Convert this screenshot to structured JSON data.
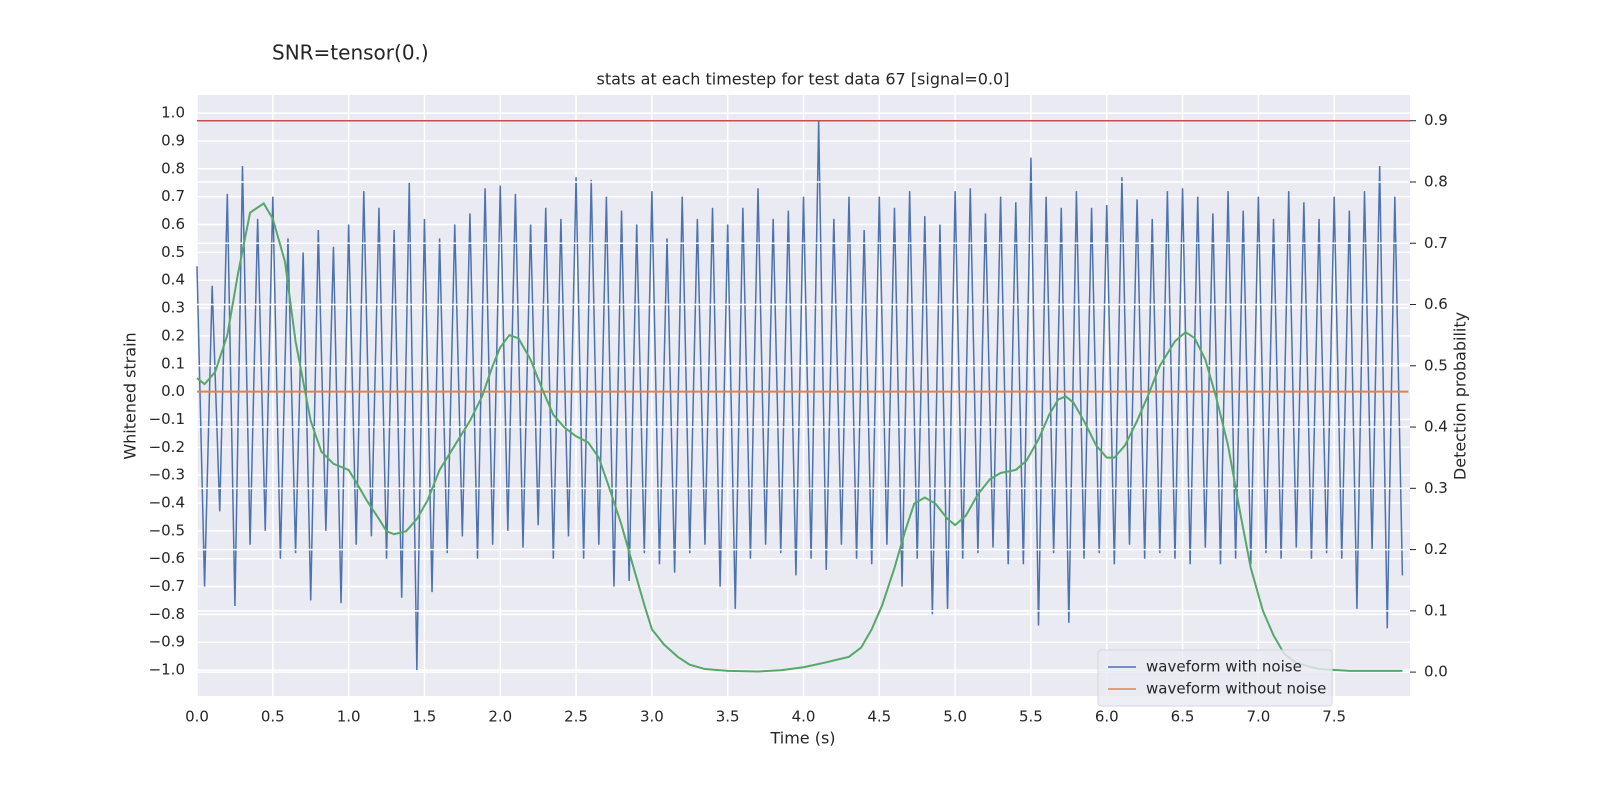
{
  "chart_data": {
    "type": "line",
    "heading": "SNR=tensor(0.)",
    "title": "stats at each timestep for test data 67 [signal=0.0]",
    "xlabel": "Time (s)",
    "ylabel": "Whitened strain",
    "y2label": "Detection probability",
    "xlim": [
      0,
      8.0
    ],
    "ylim": [
      -1.093,
      1.065
    ],
    "y2lim": [
      -0.039,
      0.942
    ],
    "xticks": [
      {
        "value": 0,
        "label": "0.0"
      },
      0.5,
      {
        "value": 1,
        "label": "1.0"
      },
      1.5,
      {
        "value": 2,
        "label": "2.0"
      },
      2.5,
      {
        "value": 3,
        "label": "3.0"
      },
      3.5,
      {
        "value": 4,
        "label": "4.0"
      },
      4.5,
      {
        "value": 5,
        "label": "5.0"
      },
      5.5,
      {
        "value": 6,
        "label": "6.0"
      },
      6.5,
      {
        "value": 7,
        "label": "7.0"
      },
      7.5
    ],
    "yticks": [
      {
        "value": -1,
        "label": "−1.0"
      },
      {
        "value": -0.9,
        "label": "−0.9"
      },
      {
        "value": -0.8,
        "label": "−0.8"
      },
      {
        "value": -0.7,
        "label": "−0.7"
      },
      {
        "value": -0.6,
        "label": "−0.6"
      },
      {
        "value": -0.5,
        "label": "−0.5"
      },
      {
        "value": -0.4,
        "label": "−0.4"
      },
      {
        "value": -0.3,
        "label": "−0.3"
      },
      {
        "value": -0.2,
        "label": "−0.2"
      },
      {
        "value": -0.1,
        "label": "−0.1"
      },
      {
        "value": 0,
        "label": "0.0"
      },
      0.1,
      0.2,
      0.3,
      0.4,
      0.5,
      0.6,
      0.7,
      0.8,
      0.9,
      {
        "value": 1,
        "label": "1.0"
      }
    ],
    "y2ticks": [
      {
        "value": 0,
        "label": "0.0"
      },
      0.1,
      0.2,
      0.3,
      0.4,
      0.5,
      0.6,
      0.7,
      0.8,
      0.9
    ],
    "grid": true,
    "legend": "lower right",
    "hlines": [
      {
        "axis": "y2",
        "value": 0.9,
        "color": "#c44e52"
      }
    ],
    "series": [
      {
        "name": "waveform with noise",
        "color": "#4c72b0",
        "x": [
          0,
          0.05,
          0.1,
          0.15,
          0.2,
          0.25,
          0.3,
          0.35,
          0.4,
          0.45,
          0.5,
          0.55,
          0.6,
          0.65,
          0.7,
          0.75,
          0.8,
          0.85,
          0.9,
          0.95,
          1,
          1.05,
          1.1,
          1.15,
          1.2,
          1.25,
          1.3,
          1.35,
          1.4,
          1.45,
          1.5,
          1.55,
          1.6,
          1.65,
          1.7,
          1.75,
          1.8,
          1.85,
          1.9,
          1.95,
          2,
          2.05,
          2.1,
          2.15,
          2.2,
          2.25,
          2.3,
          2.35,
          2.4,
          2.45,
          2.5,
          2.55,
          2.6,
          2.65,
          2.7,
          2.75,
          2.8,
          2.85,
          2.9,
          2.95,
          3,
          3.05,
          3.1,
          3.15,
          3.2,
          3.25,
          3.3,
          3.35,
          3.4,
          3.45,
          3.5,
          3.55,
          3.6,
          3.65,
          3.7,
          3.75,
          3.8,
          3.85,
          3.9,
          3.95,
          4,
          4.05,
          4.1,
          4.15,
          4.2,
          4.25,
          4.3,
          4.35,
          4.4,
          4.45,
          4.5,
          4.55,
          4.6,
          4.65,
          4.7,
          4.75,
          4.8,
          4.85,
          4.9,
          4.95,
          5,
          5.05,
          5.1,
          5.15,
          5.2,
          5.25,
          5.3,
          5.35,
          5.4,
          5.45,
          5.5,
          5.55,
          5.6,
          5.65,
          5.7,
          5.75,
          5.8,
          5.85,
          5.9,
          5.95,
          6,
          6.05,
          6.1,
          6.15,
          6.2,
          6.25,
          6.3,
          6.35,
          6.4,
          6.45,
          6.5,
          6.55,
          6.6,
          6.65,
          6.7,
          6.75,
          6.8,
          6.85,
          6.9,
          6.95,
          7,
          7.05,
          7.1,
          7.15,
          7.2,
          7.25,
          7.3,
          7.35,
          7.4,
          7.45,
          7.5,
          7.55,
          7.6,
          7.65,
          7.7,
          7.75,
          7.8,
          7.85,
          7.9,
          7.95
        ],
        "values": [
          0.45,
          -0.7,
          0.38,
          -0.43,
          0.71,
          -0.77,
          0.81,
          -0.55,
          0.62,
          -0.5,
          0.7,
          -0.6,
          0.55,
          -0.58,
          0.5,
          -0.75,
          0.58,
          -0.5,
          0.52,
          -0.76,
          0.6,
          -0.55,
          0.72,
          -0.52,
          0.66,
          -0.6,
          0.58,
          -0.74,
          0.75,
          -1.0,
          0.62,
          -0.72,
          0.55,
          -0.58,
          0.6,
          -0.52,
          0.64,
          -0.6,
          0.73,
          -0.55,
          0.74,
          -0.5,
          0.71,
          -0.56,
          0.6,
          -0.48,
          0.66,
          -0.6,
          0.62,
          -0.52,
          0.77,
          -0.6,
          0.76,
          -0.55,
          0.7,
          -0.7,
          0.65,
          -0.68,
          0.6,
          -0.58,
          0.72,
          -0.62,
          0.55,
          -0.65,
          0.7,
          -0.58,
          0.62,
          -0.55,
          0.66,
          -0.7,
          0.6,
          -0.78,
          0.66,
          -0.6,
          0.73,
          -0.55,
          0.62,
          -0.58,
          0.65,
          -0.66,
          0.7,
          -0.6,
          0.97,
          -0.64,
          0.62,
          -0.55,
          0.7,
          -0.6,
          0.58,
          -0.62,
          0.7,
          -0.55,
          0.66,
          -0.7,
          0.72,
          -0.6,
          0.63,
          -0.8,
          0.6,
          -0.78,
          0.72,
          -0.6,
          0.73,
          -0.58,
          0.64,
          -0.56,
          0.7,
          -0.62,
          0.68,
          -0.62,
          0.84,
          -0.84,
          0.7,
          -0.58,
          0.66,
          -0.83,
          0.72,
          -0.6,
          0.66,
          -0.58,
          0.67,
          -0.62,
          0.77,
          -0.55,
          0.69,
          -0.6,
          0.62,
          -0.58,
          0.72,
          -0.6,
          0.73,
          -0.62,
          0.7,
          -0.56,
          0.64,
          -0.62,
          0.72,
          -0.6,
          0.65,
          -0.62,
          0.7,
          -0.58,
          0.62,
          -0.6,
          0.72,
          -0.56,
          0.68,
          -0.6,
          0.62,
          -0.58,
          0.7,
          -0.6,
          0.65,
          -0.78,
          0.72,
          -0.57,
          0.81,
          -0.85,
          0.7,
          -0.66
        ]
      },
      {
        "name": "waveform without noise",
        "color": "#dd8452",
        "x": [
          0,
          7.99
        ],
        "values": [
          0,
          0
        ]
      },
      {
        "color": "#55a868",
        "axis": "y2",
        "x": [
          0,
          0.05,
          0.12,
          0.2,
          0.27,
          0.35,
          0.44,
          0.5,
          0.58,
          0.65,
          0.75,
          0.82,
          0.9,
          1.0,
          1.05,
          1.12,
          1.2,
          1.25,
          1.3,
          1.38,
          1.45,
          1.52,
          1.6,
          1.7,
          1.8,
          1.88,
          1.95,
          2.0,
          2.06,
          2.12,
          2.2,
          2.28,
          2.35,
          2.42,
          2.5,
          2.58,
          2.65,
          2.72,
          2.8,
          2.88,
          2.95,
          3.0,
          3.08,
          3.17,
          3.25,
          3.35,
          3.5,
          3.7,
          3.85,
          4.0,
          4.15,
          4.3,
          4.38,
          4.45,
          4.52,
          4.6,
          4.67,
          4.73,
          4.8,
          4.87,
          4.95,
          5.0,
          5.07,
          5.15,
          5.23,
          5.3,
          5.4,
          5.47,
          5.55,
          5.62,
          5.68,
          5.73,
          5.78,
          5.85,
          5.93,
          6.0,
          6.05,
          6.12,
          6.2,
          6.27,
          6.35,
          6.45,
          6.52,
          6.58,
          6.65,
          6.72,
          6.8,
          6.88,
          6.95,
          7.03,
          7.1,
          7.17,
          7.25,
          7.4,
          7.6,
          7.95
        ],
        "values": [
          0.48,
          0.47,
          0.49,
          0.55,
          0.65,
          0.75,
          0.765,
          0.74,
          0.67,
          0.54,
          0.41,
          0.36,
          0.34,
          0.33,
          0.31,
          0.28,
          0.25,
          0.23,
          0.225,
          0.23,
          0.25,
          0.28,
          0.33,
          0.37,
          0.41,
          0.45,
          0.5,
          0.53,
          0.55,
          0.545,
          0.51,
          0.46,
          0.42,
          0.4,
          0.385,
          0.375,
          0.35,
          0.3,
          0.24,
          0.17,
          0.11,
          0.07,
          0.045,
          0.025,
          0.012,
          0.005,
          0.002,
          0.001,
          0.003,
          0.008,
          0.016,
          0.025,
          0.04,
          0.07,
          0.11,
          0.17,
          0.23,
          0.275,
          0.285,
          0.275,
          0.25,
          0.24,
          0.255,
          0.29,
          0.315,
          0.325,
          0.33,
          0.345,
          0.38,
          0.42,
          0.445,
          0.45,
          0.44,
          0.41,
          0.37,
          0.35,
          0.35,
          0.37,
          0.41,
          0.45,
          0.5,
          0.54,
          0.555,
          0.545,
          0.51,
          0.45,
          0.37,
          0.26,
          0.17,
          0.1,
          0.06,
          0.03,
          0.015,
          0.005,
          0.002,
          0.002
        ]
      }
    ]
  }
}
